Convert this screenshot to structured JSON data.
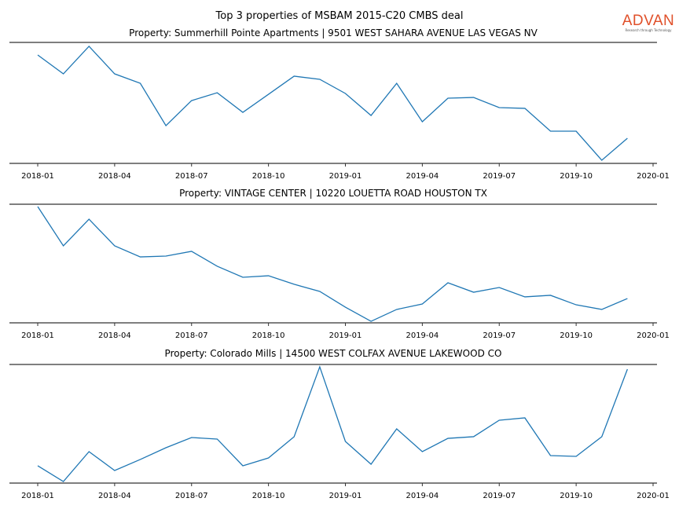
{
  "title": "Top 3 properties of MSBAM 2015-C20 CMBS deal",
  "logo": {
    "brand": "ADVAN",
    "tagline": "Research through Technology",
    "color": "#e0502a"
  },
  "line_color": "#1f77b4",
  "chart_data": [
    {
      "type": "line",
      "title": "Property: Summerhill Pointe Apartments | 9501 WEST SAHARA AVENUE LAS VEGAS NV",
      "x": [
        "2018-01",
        "2018-02",
        "2018-03",
        "2018-04",
        "2018-05",
        "2018-06",
        "2018-07",
        "2018-08",
        "2018-09",
        "2018-10",
        "2018-11",
        "2018-12",
        "2019-01",
        "2019-02",
        "2019-03",
        "2019-04",
        "2019-05",
        "2019-06",
        "2019-07",
        "2019-08",
        "2019-09",
        "2019-10",
        "2019-11",
        "2019-12"
      ],
      "values": [
        89.6,
        74.0,
        96.8,
        74.0,
        66.2,
        31.2,
        51.9,
        58.4,
        42.2,
        57.1,
        72.1,
        69.5,
        57.8,
        39.6,
        66.2,
        34.4,
        53.9,
        54.5,
        46.1,
        45.5,
        26.6,
        26.6,
        2.6,
        20.8
      ],
      "xticks": [
        "2018-01",
        "2018-04",
        "2018-07",
        "2018-10",
        "2019-01",
        "2019-04",
        "2019-07",
        "2019-10",
        "2020-01"
      ],
      "ylim": [
        0,
        100
      ],
      "yaxis_visible": false,
      "grid": false
    },
    {
      "type": "line",
      "title": "Property: VINTAGE CENTER | 10220 LOUETTA ROAD HOUSTON TX",
      "x": [
        "2018-01",
        "2018-02",
        "2018-03",
        "2018-04",
        "2018-05",
        "2018-06",
        "2018-07",
        "2018-08",
        "2018-09",
        "2018-10",
        "2018-11",
        "2018-12",
        "2019-01",
        "2019-02",
        "2019-03",
        "2019-04",
        "2019-05",
        "2019-06",
        "2019-07",
        "2019-08",
        "2019-09",
        "2019-10",
        "2019-11",
        "2019-12"
      ],
      "values": [
        98.0,
        64.9,
        87.4,
        64.9,
        55.6,
        56.3,
        60.3,
        47.7,
        38.4,
        39.7,
        32.5,
        26.5,
        13.2,
        1.3,
        11.3,
        15.9,
        33.8,
        25.8,
        29.8,
        21.9,
        23.2,
        15.2,
        11.3,
        20.5
      ],
      "xticks": [
        "2018-01",
        "2018-04",
        "2018-07",
        "2018-10",
        "2019-01",
        "2019-04",
        "2019-07",
        "2019-10",
        "2020-01"
      ],
      "ylim": [
        0,
        100
      ],
      "yaxis_visible": false,
      "grid": false
    },
    {
      "type": "line",
      "title": "Property: Colorado Mills | 14500 WEST COLFAX AVENUE LAKEWOOD CO",
      "x": [
        "2018-01",
        "2018-02",
        "2018-03",
        "2018-04",
        "2018-05",
        "2018-06",
        "2018-07",
        "2018-08",
        "2018-09",
        "2018-10",
        "2018-11",
        "2018-12",
        "2019-01",
        "2019-02",
        "2019-03",
        "2019-04",
        "2019-05",
        "2019-06",
        "2019-07",
        "2019-08",
        "2019-09",
        "2019-10",
        "2019-11",
        "2019-12"
      ],
      "values": [
        14.6,
        1.3,
        26.5,
        10.6,
        19.9,
        29.8,
        38.4,
        37.1,
        14.6,
        21.2,
        39.1,
        98.0,
        35.1,
        15.9,
        45.7,
        26.5,
        37.7,
        39.1,
        53.0,
        55.0,
        23.2,
        22.5,
        39.1,
        96.0
      ],
      "xticks": [
        "2018-01",
        "2018-04",
        "2018-07",
        "2018-10",
        "2019-01",
        "2019-04",
        "2019-07",
        "2019-10",
        "2020-01"
      ],
      "ylim": [
        0,
        100
      ],
      "yaxis_visible": false,
      "grid": false
    }
  ]
}
